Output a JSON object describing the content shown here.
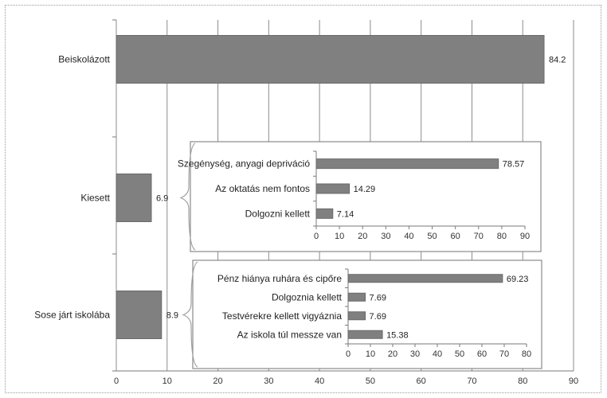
{
  "chart_data": [
    {
      "type": "bar",
      "orientation": "horizontal",
      "categories": [
        "Beiskolázott",
        "Kiesett",
        "Sose járt iskolába"
      ],
      "values": [
        84.2,
        6.9,
        8.9
      ],
      "value_labels": [
        "84.2",
        "6.9",
        "8.9"
      ],
      "xlim": [
        0,
        90
      ],
      "xticks": [
        "0",
        "10",
        "20",
        "30",
        "40",
        "50",
        "60",
        "70",
        "80",
        "90"
      ],
      "grid": "vertical",
      "bar_color": "#808080"
    },
    {
      "type": "bar",
      "orientation": "horizontal",
      "inset_of": "Kiesett",
      "categories": [
        "Szegénység, anyagi depriváció",
        "Az oktatás nem fontos",
        "Dolgozni kellett"
      ],
      "values": [
        78.57,
        14.29,
        7.14
      ],
      "value_labels": [
        "78.57",
        "14.29",
        "7.14"
      ],
      "xlim": [
        0,
        90
      ],
      "xticks": [
        "0",
        "10",
        "20",
        "30",
        "40",
        "50",
        "60",
        "70",
        "80",
        "90"
      ],
      "bar_color": "#808080"
    },
    {
      "type": "bar",
      "orientation": "horizontal",
      "inset_of": "Sose járt iskolába",
      "categories": [
        "Pénz hiánya ruhára és cipőre",
        "Dolgoznia kellett",
        "Testvérekre kellett vigyáznia",
        "Az iskola túl messze van"
      ],
      "values": [
        69.23,
        7.69,
        7.69,
        15.38
      ],
      "value_labels": [
        "69.23",
        "7.69",
        "7.69",
        "15.38"
      ],
      "xlim": [
        0,
        80
      ],
      "xticks": [
        "0",
        "10",
        "20",
        "30",
        "40",
        "50",
        "60",
        "70",
        "80"
      ],
      "bar_color": "#808080"
    }
  ]
}
